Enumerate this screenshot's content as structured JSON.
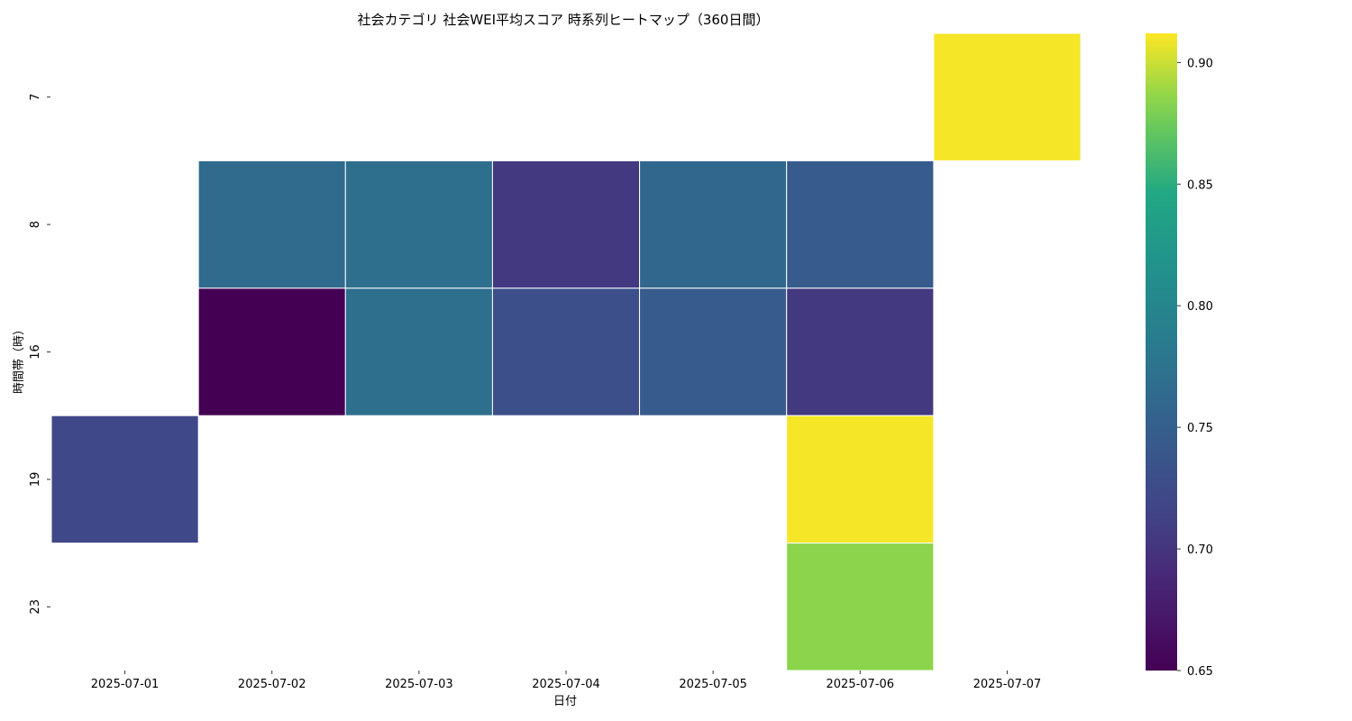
{
  "chart_data": {
    "type": "heatmap",
    "title": "社会カテゴリ 社会WEI平均スコア 時系列ヒートマップ（360日間）",
    "xlabel": "日付",
    "ylabel": "時間帯（時）",
    "x": [
      "2025-07-01",
      "2025-07-02",
      "2025-07-03",
      "2025-07-04",
      "2025-07-05",
      "2025-07-06",
      "2025-07-07"
    ],
    "y": [
      "7",
      "8",
      "16",
      "19",
      "23"
    ],
    "values": [
      [
        null,
        null,
        null,
        null,
        null,
        null,
        0.91
      ],
      [
        null,
        0.765,
        0.77,
        0.705,
        0.76,
        0.745,
        null
      ],
      [
        null,
        0.65,
        0.77,
        0.73,
        0.745,
        0.705,
        null
      ],
      [
        0.72,
        null,
        null,
        null,
        null,
        0.91,
        null
      ],
      [
        null,
        null,
        null,
        null,
        null,
        0.885,
        null
      ]
    ],
    "colormap": "viridis",
    "vmin": 0.65,
    "vmax": 0.912,
    "colorbar_ticks": [
      0.65,
      0.7,
      0.75,
      0.8,
      0.85,
      0.9
    ],
    "colorbar_tick_labels": [
      "0.65",
      "0.70",
      "0.75",
      "0.80",
      "0.85",
      "0.90"
    ]
  }
}
